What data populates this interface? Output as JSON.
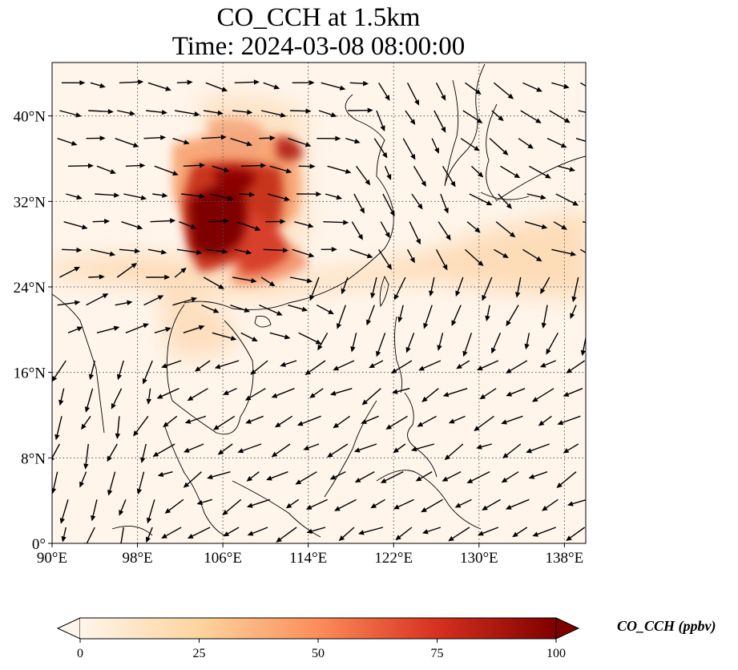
{
  "title": {
    "line1": "CO_CCH at 1.5km",
    "line2": "Time: 2024-03-08 08:00:00"
  },
  "map": {
    "lon_range": [
      90,
      140
    ],
    "lat_range": [
      0,
      45
    ],
    "lon_ticks": [
      {
        "value": 90,
        "label": "90°E"
      },
      {
        "value": 98,
        "label": "98°E"
      },
      {
        "value": 106,
        "label": "106°E"
      },
      {
        "value": 114,
        "label": "114°E"
      },
      {
        "value": 122,
        "label": "122°E"
      },
      {
        "value": 130,
        "label": "130°E"
      },
      {
        "value": 138,
        "label": "138°E"
      }
    ],
    "lat_ticks": [
      {
        "value": 0,
        "label": "0°"
      },
      {
        "value": 8,
        "label": "8°N"
      },
      {
        "value": 16,
        "label": "16°N"
      },
      {
        "value": 24,
        "label": "24°N"
      },
      {
        "value": 32,
        "label": "32°N"
      },
      {
        "value": 40,
        "label": "40°N"
      }
    ],
    "gridlines": "dotted",
    "background_color": "#fff5eb",
    "concentration_field": [
      {
        "lon": 105.5,
        "lat": 29.5,
        "value": 100
      },
      {
        "lon": 107.5,
        "lat": 32.0,
        "value": 95
      },
      {
        "lon": 106.5,
        "lat": 27.0,
        "value": 80
      },
      {
        "lon": 108.5,
        "lat": 28.5,
        "value": 60
      },
      {
        "lon": 108.0,
        "lat": 35.0,
        "value": 45
      },
      {
        "lon": 111.5,
        "lat": 37.0,
        "value": 40
      },
      {
        "lon": 102.0,
        "lat": 36.5,
        "value": 35
      },
      {
        "lon": 104.0,
        "lat": 21.0,
        "value": 20
      },
      {
        "lon": 118.0,
        "lat": 25.5,
        "value": 18
      },
      {
        "lon": 128.0,
        "lat": 26.0,
        "value": 15
      },
      {
        "lon": 136.0,
        "lat": 24.5,
        "value": 18
      },
      {
        "lon": 98.0,
        "lat": 27.0,
        "value": 12
      }
    ],
    "wind_vectors": "black arrows across the domain; strong northwest-to-southeast flow over Korea/Japan, westerlies north of 24°N, weaker northeasterlies over the South China Sea"
  },
  "colorbar": {
    "colormap": "OrRd",
    "colors": [
      "#fff5eb",
      "#fdd49e",
      "#fc8d59",
      "#d7301f",
      "#7f0000"
    ],
    "ticks": [
      {
        "value": 0,
        "label": "0"
      },
      {
        "value": 25,
        "label": "25"
      },
      {
        "value": 50,
        "label": "50"
      },
      {
        "value": 75,
        "label": "75"
      },
      {
        "value": 100,
        "label": "100"
      }
    ],
    "range": [
      0,
      100
    ],
    "extend": "both",
    "label": "CO_CCH (ppbv)"
  }
}
